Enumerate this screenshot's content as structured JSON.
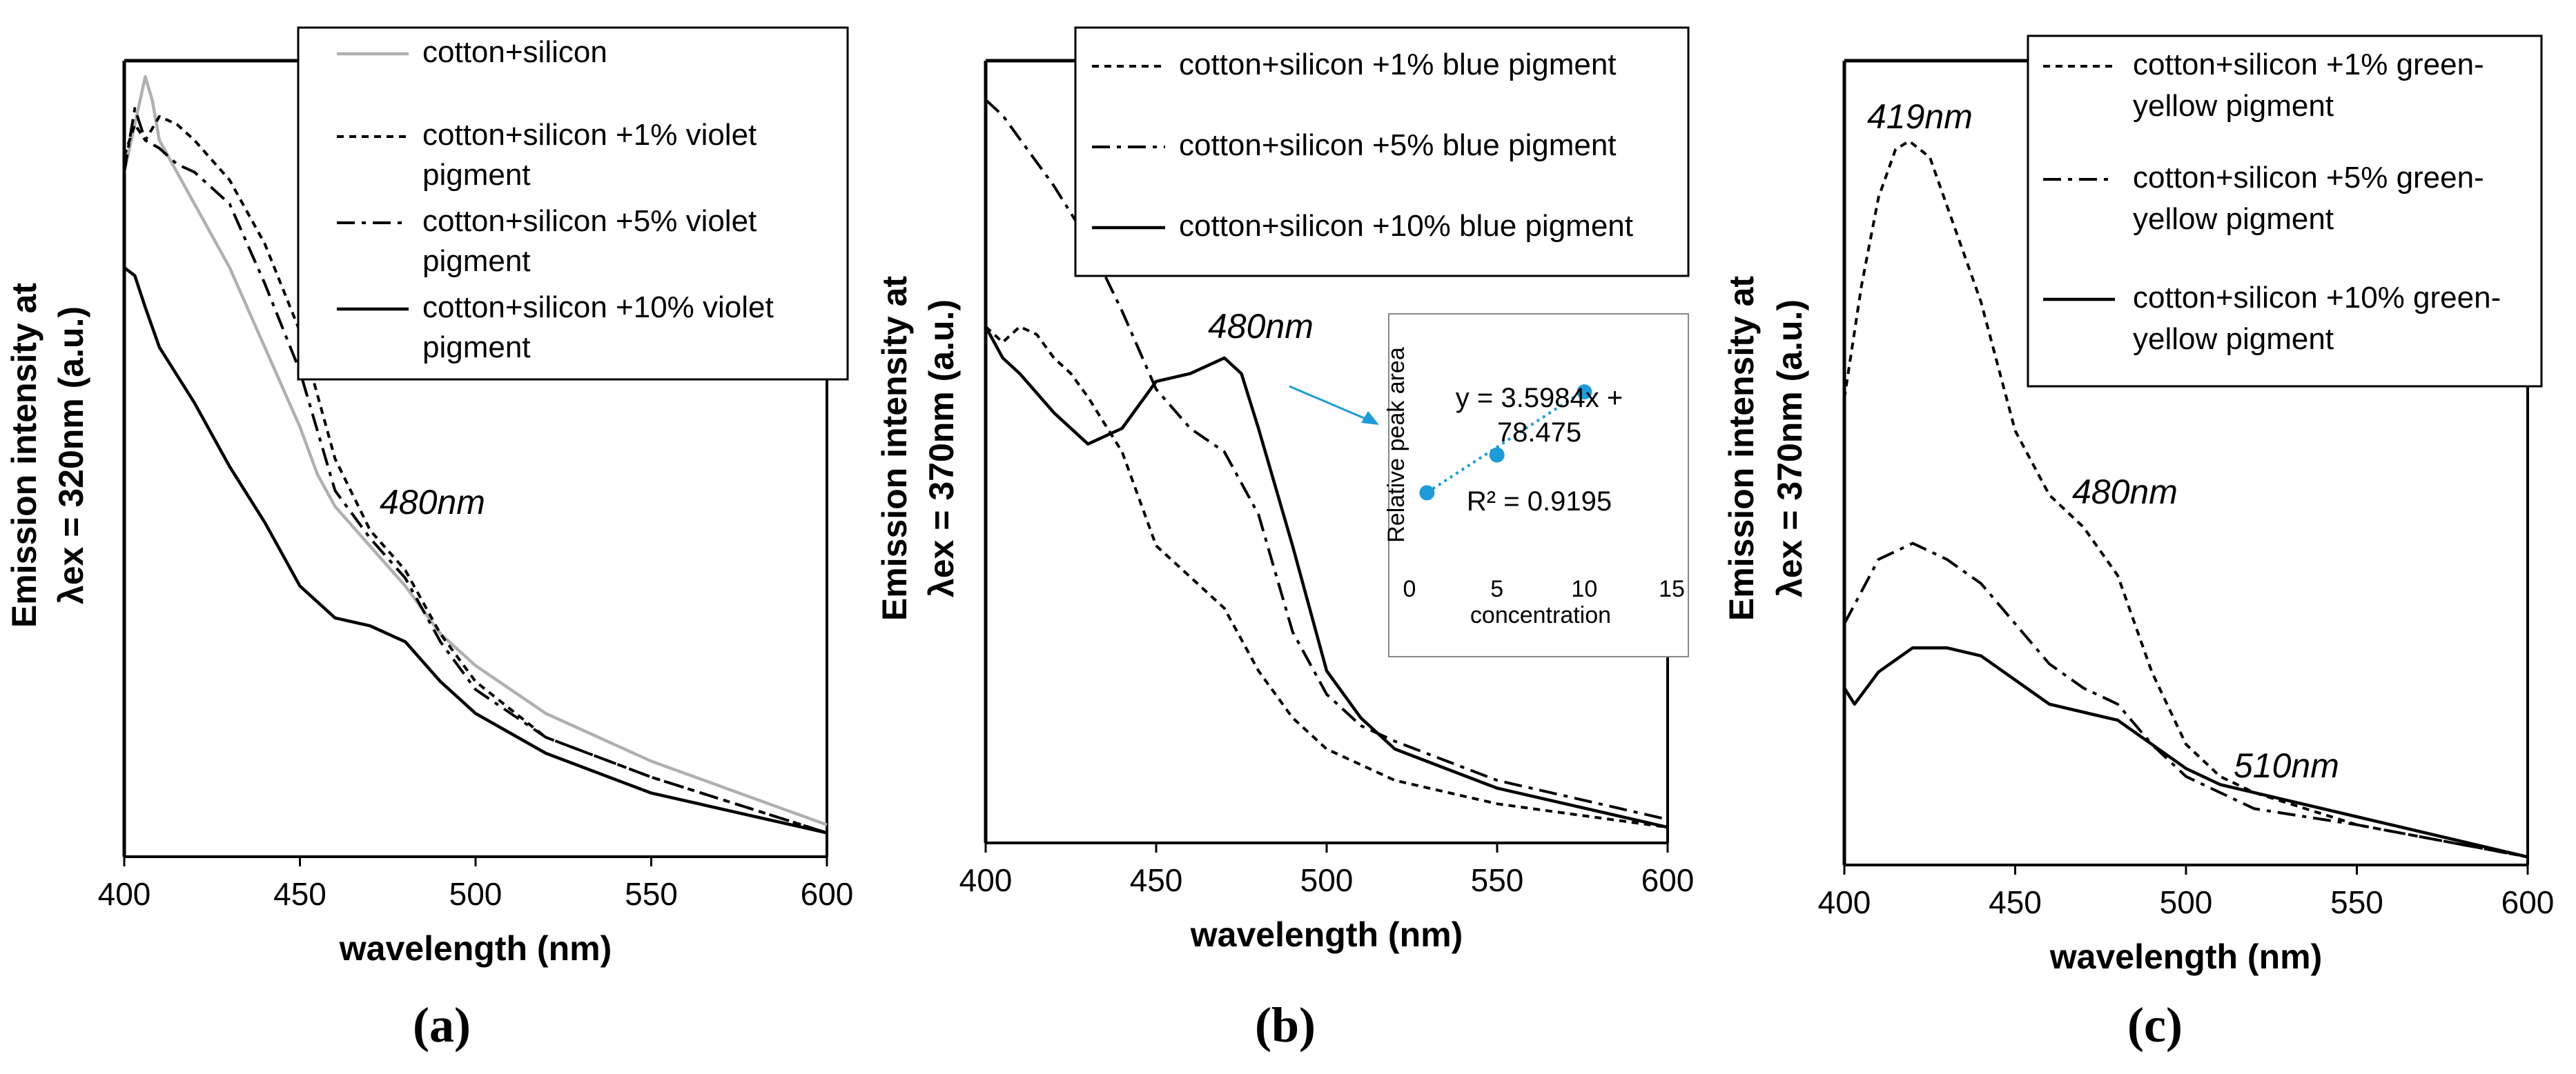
{
  "chart_data": [
    {
      "type": "line",
      "panel_label": "(a)",
      "xlabel": "wavelength (nm)",
      "ylabel_lines": [
        "Emission intensity at",
        "λex = 320nm (a.u.)"
      ],
      "xlim": [
        400,
        600
      ],
      "xticks": [
        "400",
        "450",
        "500",
        "550",
        "600"
      ],
      "y_axis_ticks_labeled": false,
      "legend": {
        "placement": "top-right",
        "frame": true
      },
      "annotations": [
        {
          "text": "480nm",
          "at_x": 480
        }
      ],
      "series": [
        {
          "name_lines": [
            "cotton+silicon"
          ],
          "color": "#b0b0b0",
          "style": "solid",
          "x": [
            400,
            403,
            406,
            408,
            410,
            415,
            420,
            430,
            440,
            450,
            455,
            460,
            470,
            480,
            490,
            500,
            520,
            550,
            600
          ],
          "y": [
            0.86,
            0.92,
            0.98,
            0.95,
            0.9,
            0.86,
            0.82,
            0.74,
            0.64,
            0.54,
            0.48,
            0.44,
            0.39,
            0.34,
            0.28,
            0.24,
            0.18,
            0.12,
            0.04
          ]
        },
        {
          "name_lines": [
            "cotton+silicon +1% violet",
            "pigment"
          ],
          "color": "#000000",
          "style": "dashed",
          "x": [
            400,
            403,
            406,
            410,
            415,
            420,
            430,
            440,
            450,
            460,
            470,
            480,
            490,
            500,
            520,
            550,
            600
          ],
          "y": [
            0.88,
            0.92,
            0.9,
            0.93,
            0.92,
            0.9,
            0.85,
            0.77,
            0.66,
            0.5,
            0.41,
            0.36,
            0.28,
            0.22,
            0.15,
            0.1,
            0.03
          ]
        },
        {
          "name_lines": [
            "cotton+silicon +5% violet",
            "pigment"
          ],
          "color": "#000000",
          "style": "dashdot",
          "x": [
            400,
            403,
            406,
            410,
            415,
            420,
            430,
            440,
            450,
            460,
            470,
            480,
            490,
            500,
            520,
            550,
            600
          ],
          "y": [
            0.86,
            0.94,
            0.9,
            0.89,
            0.87,
            0.86,
            0.82,
            0.72,
            0.61,
            0.46,
            0.4,
            0.35,
            0.27,
            0.21,
            0.15,
            0.1,
            0.03
          ]
        },
        {
          "name_lines": [
            "cotton+silicon +10% violet",
            "pigment"
          ],
          "color": "#000000",
          "style": "solid",
          "x": [
            400,
            403,
            406,
            410,
            420,
            430,
            440,
            450,
            460,
            470,
            480,
            490,
            500,
            520,
            550,
            600
          ],
          "y": [
            0.74,
            0.73,
            0.69,
            0.64,
            0.57,
            0.49,
            0.42,
            0.34,
            0.3,
            0.29,
            0.27,
            0.22,
            0.18,
            0.13,
            0.08,
            0.03
          ]
        }
      ]
    },
    {
      "type": "line",
      "panel_label": "(b)",
      "xlabel": "wavelength (nm)",
      "ylabel_lines": [
        "Emission intensity at",
        "λex = 370nm (a.u.)"
      ],
      "xlim": [
        400,
        600
      ],
      "xticks": [
        "400",
        "450",
        "500",
        "550",
        "600"
      ],
      "y_axis_ticks_labeled": false,
      "legend": {
        "placement": "top-right",
        "frame": true
      },
      "annotations": [
        {
          "text": "480nm",
          "at_x": 480
        }
      ],
      "series": [
        {
          "name_lines": [
            "cotton+silicon +1% blue pigment"
          ],
          "color": "#000000",
          "style": "dashed",
          "x": [
            400,
            405,
            410,
            415,
            420,
            425,
            430,
            440,
            445,
            450,
            460,
            470,
            480,
            490,
            500,
            510,
            520,
            550,
            600
          ],
          "y": [
            0.66,
            0.64,
            0.66,
            0.65,
            0.62,
            0.6,
            0.57,
            0.5,
            0.44,
            0.38,
            0.34,
            0.3,
            0.22,
            0.16,
            0.12,
            0.1,
            0.08,
            0.05,
            0.02
          ]
        },
        {
          "name_lines": [
            "cotton+silicon +5% blue pigment"
          ],
          "color": "#000000",
          "style": "dashdot",
          "x": [
            400,
            405,
            410,
            420,
            430,
            440,
            450,
            460,
            470,
            480,
            490,
            500,
            510,
            520,
            550,
            580,
            600
          ],
          "y": [
            0.95,
            0.93,
            0.9,
            0.84,
            0.77,
            0.68,
            0.58,
            0.53,
            0.5,
            0.42,
            0.27,
            0.19,
            0.15,
            0.13,
            0.08,
            0.05,
            0.03
          ]
        },
        {
          "name_lines": [
            "cotton+silicon +10% blue pigment"
          ],
          "color": "#000000",
          "style": "solid",
          "x": [
            400,
            405,
            410,
            420,
            430,
            440,
            450,
            460,
            470,
            475,
            480,
            490,
            500,
            510,
            520,
            550,
            600
          ],
          "y": [
            0.66,
            0.62,
            0.6,
            0.55,
            0.51,
            0.53,
            0.59,
            0.6,
            0.62,
            0.6,
            0.53,
            0.38,
            0.22,
            0.16,
            0.12,
            0.07,
            0.02
          ]
        }
      ],
      "inset": {
        "type": "scatter",
        "xlabel": "concentration",
        "ylabel": "Relative peak area",
        "xlim": [
          0,
          15
        ],
        "ylim": [
          60,
          130
        ],
        "xticks": [
          "0",
          "5",
          "10",
          "15"
        ],
        "x": [
          1,
          5,
          10
        ],
        "y": [
          82,
          94,
          114
        ],
        "trendline": {
          "slope": 3.5984,
          "intercept": 78.475
        },
        "equation_lines": [
          "y = 3.5984x +",
          "78.475",
          "R² = 0.9195"
        ],
        "color": "#1f9bd7"
      }
    },
    {
      "type": "line",
      "panel_label": "(c)",
      "xlabel": "wavelength (nm)",
      "ylabel_lines": [
        "Emission intensity at",
        "λex = 370nm (a.u.)"
      ],
      "xlim": [
        400,
        600
      ],
      "xticks": [
        "400",
        "450",
        "500",
        "550",
        "600"
      ],
      "y_axis_ticks_labeled": false,
      "legend": {
        "placement": "top-right",
        "frame": true
      },
      "annotations": [
        {
          "text": "419nm",
          "at_x": 419
        },
        {
          "text": "480nm",
          "at_x": 480
        },
        {
          "text": "510nm",
          "at_x": 510
        }
      ],
      "series": [
        {
          "name_lines": [
            "cotton+silicon +1% green-",
            "yellow pigment"
          ],
          "color": "#000000",
          "style": "dashed",
          "x": [
            400,
            405,
            410,
            415,
            419,
            425,
            430,
            440,
            450,
            460,
            470,
            480,
            490,
            500,
            510,
            520,
            550,
            600
          ],
          "y": [
            0.58,
            0.72,
            0.83,
            0.89,
            0.9,
            0.88,
            0.82,
            0.7,
            0.54,
            0.46,
            0.42,
            0.36,
            0.24,
            0.15,
            0.11,
            0.09,
            0.05,
            0.01
          ]
        },
        {
          "name_lines": [
            "cotton+silicon +5% green-",
            "yellow pigment"
          ],
          "color": "#000000",
          "style": "dashdot",
          "x": [
            400,
            405,
            410,
            420,
            430,
            440,
            450,
            460,
            470,
            480,
            490,
            500,
            510,
            520,
            550,
            600
          ],
          "y": [
            0.3,
            0.34,
            0.38,
            0.4,
            0.38,
            0.35,
            0.3,
            0.25,
            0.22,
            0.2,
            0.15,
            0.11,
            0.09,
            0.07,
            0.05,
            0.01
          ]
        },
        {
          "name_lines": [
            "cotton+silicon +10% green-",
            "yellow pigment"
          ],
          "color": "#000000",
          "style": "solid",
          "x": [
            400,
            403,
            410,
            420,
            430,
            440,
            450,
            460,
            470,
            480,
            490,
            500,
            510,
            520,
            550,
            600
          ],
          "y": [
            0.22,
            0.2,
            0.24,
            0.27,
            0.27,
            0.26,
            0.23,
            0.2,
            0.19,
            0.18,
            0.15,
            0.12,
            0.1,
            0.09,
            0.06,
            0.01
          ]
        }
      ]
    }
  ]
}
